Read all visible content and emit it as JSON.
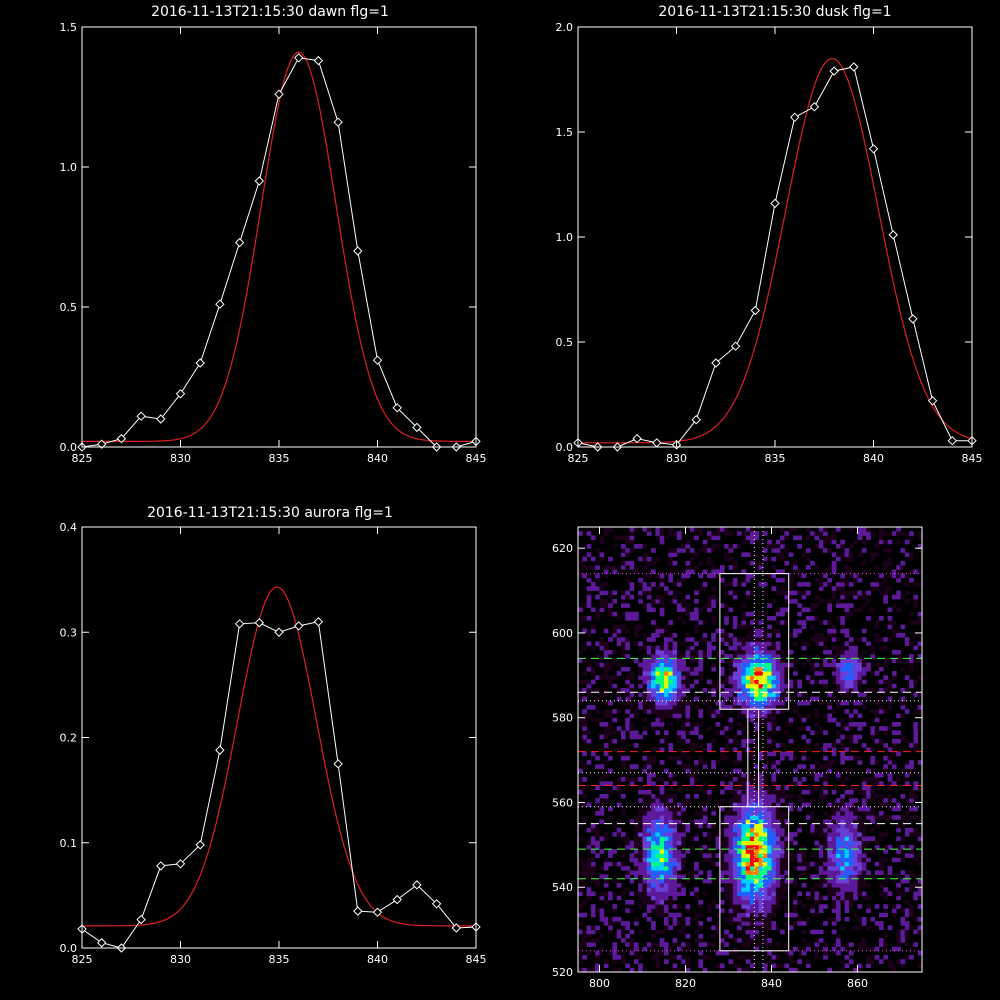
{
  "chart_data": [
    {
      "type": "line",
      "title": "2016-11-13T21:15:30 dawn flg=1",
      "xlim": [
        825,
        845
      ],
      "ylim": [
        0,
        1.5
      ],
      "x_ticks": [
        825,
        830,
        835,
        840,
        845
      ],
      "y_ticks": [
        0.0,
        0.5,
        1.0,
        1.5
      ],
      "y_tick_labels": [
        "0.0",
        "0.5",
        "1.0",
        "1.5"
      ],
      "series": [
        {
          "marker": "diamond",
          "color": "#ffffff",
          "x": [
            825,
            826,
            827,
            828,
            829,
            830,
            831,
            832,
            833,
            834,
            835,
            836,
            837,
            838,
            839,
            840,
            841,
            842,
            843,
            844,
            845
          ],
          "y": [
            0.0,
            0.01,
            0.03,
            0.11,
            0.1,
            0.19,
            0.3,
            0.51,
            0.73,
            0.95,
            1.26,
            1.39,
            1.38,
            1.16,
            0.7,
            0.31,
            0.14,
            0.07,
            0.0,
            0.0,
            0.02
          ]
        },
        {
          "fit": "gaussian",
          "color": "#dd2020",
          "amplitude": 1.39,
          "center": 836.0,
          "sigma": 1.9,
          "baseline": 0.02
        }
      ]
    },
    {
      "type": "line",
      "title": "2016-11-13T21:15:30 dusk flg=1",
      "xlim": [
        825,
        845
      ],
      "ylim": [
        0,
        2.0
      ],
      "x_ticks": [
        825,
        830,
        835,
        840,
        845
      ],
      "y_ticks": [
        0.0,
        0.5,
        1.0,
        1.5,
        2.0
      ],
      "y_tick_labels": [
        "0.0",
        "0.5",
        "1.0",
        "1.5",
        "2.0"
      ],
      "series": [
        {
          "marker": "diamond",
          "color": "#ffffff",
          "x": [
            825,
            826,
            827,
            828,
            829,
            830,
            831,
            832,
            833,
            834,
            835,
            836,
            837,
            838,
            839,
            840,
            841,
            842,
            843,
            844,
            845
          ],
          "y": [
            0.02,
            0.0,
            0.0,
            0.04,
            0.02,
            0.01,
            0.13,
            0.4,
            0.48,
            0.65,
            1.16,
            1.57,
            1.62,
            1.79,
            1.81,
            1.42,
            1.01,
            0.61,
            0.22,
            0.03,
            0.03
          ]
        },
        {
          "fit": "gaussian",
          "color": "#dd2020",
          "amplitude": 1.83,
          "center": 837.9,
          "sigma": 2.35,
          "baseline": 0.02
        }
      ]
    },
    {
      "type": "line",
      "title": "2016-11-13T21:15:30 aurora flg=1",
      "xlim": [
        825,
        845
      ],
      "ylim": [
        0,
        0.4
      ],
      "x_ticks": [
        825,
        830,
        835,
        840,
        845
      ],
      "y_ticks": [
        0.0,
        0.1,
        0.2,
        0.3,
        0.4
      ],
      "y_tick_labels": [
        "0.0",
        "0.1",
        "0.2",
        "0.3",
        "0.4"
      ],
      "series": [
        {
          "marker": "diamond",
          "color": "#ffffff",
          "x": [
            825,
            826,
            827,
            828,
            829,
            830,
            831,
            832,
            833,
            834,
            835,
            836,
            837,
            838,
            839,
            840,
            841,
            842,
            843,
            844,
            845
          ],
          "y": [
            0.018,
            0.005,
            0.0,
            0.027,
            0.078,
            0.08,
            0.098,
            0.188,
            0.308,
            0.309,
            0.3,
            0.306,
            0.31,
            0.175,
            0.035,
            0.034,
            0.046,
            0.06,
            0.042,
            0.019,
            0.02
          ]
        },
        {
          "fit": "gaussian",
          "color": "#dd2020",
          "amplitude": 0.322,
          "center": 834.9,
          "sigma": 2.0,
          "baseline": 0.021
        }
      ]
    },
    {
      "type": "heatmap",
      "title": "",
      "xlim": [
        795,
        875
      ],
      "ylim": [
        520,
        625
      ],
      "x_ticks": [
        800,
        820,
        840,
        860
      ],
      "y_ticks": [
        520,
        540,
        560,
        580,
        600,
        620
      ],
      "colormap": [
        "#1a0018",
        "#5c1a9a",
        "#6a3fd8",
        "#2060ff",
        "#00d0ff",
        "#00ff80",
        "#e0ff00",
        "#ff8000",
        "#ff0000"
      ],
      "blobs": [
        {
          "x": 815,
          "y": 589,
          "sx": 2.3,
          "sy": 3.4,
          "amp": 0.82
        },
        {
          "x": 837,
          "y": 589,
          "sx": 2.8,
          "sy": 4.0,
          "amp": 1.0
        },
        {
          "x": 858,
          "y": 591,
          "sx": 1.8,
          "sy": 2.6,
          "amp": 0.42
        },
        {
          "x": 814,
          "y": 548,
          "sx": 2.4,
          "sy": 6.0,
          "amp": 0.62
        },
        {
          "x": 836,
          "y": 548,
          "sx": 3.0,
          "sy": 7.0,
          "amp": 0.95
        },
        {
          "x": 857,
          "y": 548,
          "sx": 2.4,
          "sy": 5.5,
          "amp": 0.42
        }
      ],
      "boxes": [
        {
          "x0": 828,
          "x1": 844,
          "y0": 582,
          "y1": 614
        },
        {
          "x0": 828,
          "x1": 844,
          "y0": 525,
          "y1": 559
        }
      ],
      "connector": {
        "x0": 834.5,
        "x1": 837,
        "y0": 559,
        "y1": 582
      },
      "dotted_vertical": [
        836,
        838
      ],
      "hlines": [
        {
          "y": 614,
          "color": "#ff40ff",
          "style": "dotted"
        },
        {
          "y": 594,
          "color": "#40ff40",
          "style": "dashed"
        },
        {
          "y": 586,
          "color": "#ffffff",
          "style": "dashed"
        },
        {
          "y": 584,
          "color": "#ffffff",
          "style": "dotted"
        },
        {
          "y": 572,
          "color": "#ff2020",
          "style": "dashed"
        },
        {
          "y": 567,
          "color": "#ffffff",
          "style": "dotted"
        },
        {
          "y": 564,
          "color": "#ff2020",
          "style": "dashed"
        },
        {
          "y": 559,
          "color": "#ffffff",
          "style": "dotted"
        },
        {
          "y": 555,
          "color": "#ffffff",
          "style": "dashed"
        },
        {
          "y": 549,
          "color": "#40ff40",
          "style": "dashed"
        },
        {
          "y": 542,
          "color": "#40ff40",
          "style": "dashed"
        },
        {
          "y": 525,
          "color": "#ff40ff",
          "style": "dotted"
        }
      ]
    }
  ]
}
